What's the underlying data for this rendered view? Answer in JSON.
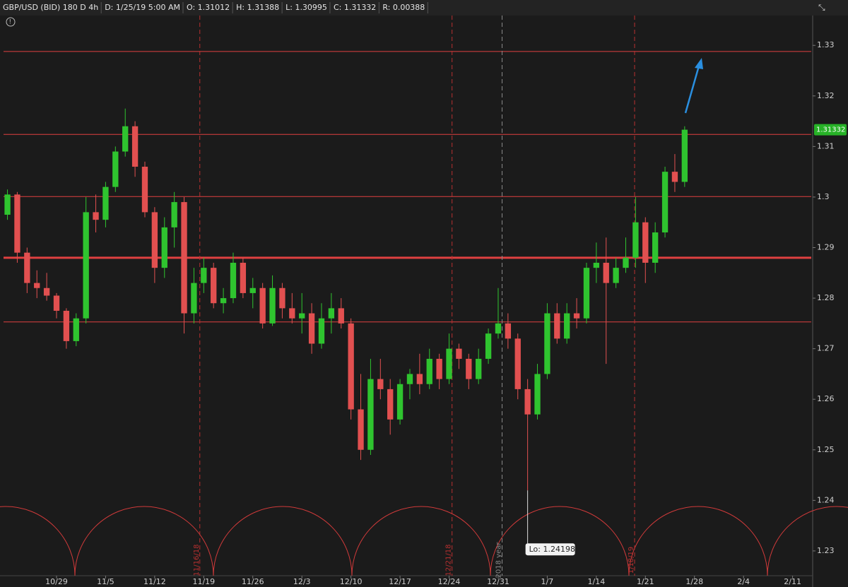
{
  "chart_data": {
    "type": "candlestick",
    "header": [
      "GBP/USD (BID) 180 D 4h",
      "D: 1/25/19 5:00 AM",
      "O: 1.31012",
      "H: 1.31388",
      "L: 1.30995",
      "C: 1.31332",
      "R: 0.00388"
    ],
    "open": [
      1.2965,
      1.3005,
      1.289,
      1.283,
      1.282,
      1.2805,
      1.2775,
      1.2715,
      1.276,
      1.297,
      1.2955,
      1.302,
      1.309,
      1.314,
      1.306,
      1.297,
      1.286,
      1.294,
      1.299,
      1.277,
      1.283,
      1.286,
      1.279,
      1.28,
      1.287,
      1.281,
      1.282,
      1.275,
      1.282,
      1.278,
      1.276,
      1.277,
      1.271,
      1.276,
      1.278,
      1.275,
      1.258,
      1.25,
      1.264,
      1.262,
      1.256,
      1.263,
      1.265,
      1.263,
      1.268,
      1.264,
      1.27,
      1.268,
      1.264,
      1.268,
      1.273,
      1.275,
      1.272,
      1.262,
      1.257,
      1.265,
      1.277,
      1.272,
      1.277,
      1.276,
      1.286,
      1.287,
      1.283,
      1.286,
      1.288,
      1.295,
      1.287,
      1.293,
      1.305,
      1.303
    ],
    "high": [
      1.3015,
      1.301,
      1.29,
      1.2855,
      1.285,
      1.281,
      1.278,
      1.277,
      1.3,
      1.3005,
      1.303,
      1.31,
      1.3175,
      1.315,
      1.307,
      1.298,
      1.296,
      1.301,
      1.3,
      1.286,
      1.288,
      1.287,
      1.282,
      1.289,
      1.288,
      1.284,
      1.283,
      1.2845,
      1.283,
      1.281,
      1.281,
      1.279,
      1.279,
      1.281,
      1.28,
      1.276,
      1.265,
      1.268,
      1.268,
      1.264,
      1.264,
      1.266,
      1.269,
      1.27,
      1.269,
      1.273,
      1.271,
      1.269,
      1.27,
      1.274,
      1.282,
      1.277,
      1.273,
      1.264,
      1.267,
      1.279,
      1.279,
      1.279,
      1.28,
      1.287,
      1.291,
      1.292,
      1.288,
      1.292,
      1.3,
      1.296,
      1.295,
      1.306,
      1.3085,
      1.314
    ],
    "low": [
      1.2955,
      1.287,
      1.281,
      1.28,
      1.2795,
      1.276,
      1.27,
      1.2705,
      1.275,
      1.293,
      1.294,
      1.301,
      1.308,
      1.304,
      1.296,
      1.283,
      1.284,
      1.29,
      1.273,
      1.275,
      1.281,
      1.278,
      1.277,
      1.279,
      1.28,
      1.278,
      1.274,
      1.2745,
      1.276,
      1.275,
      1.273,
      1.269,
      1.27,
      1.273,
      1.274,
      1.256,
      1.248,
      1.249,
      1.26,
      1.253,
      1.255,
      1.26,
      1.261,
      1.262,
      1.262,
      1.263,
      1.266,
      1.262,
      1.263,
      1.267,
      1.272,
      1.27,
      1.26,
      1.24198,
      1.256,
      1.264,
      1.271,
      1.271,
      1.274,
      1.275,
      1.283,
      1.267,
      1.282,
      1.285,
      1.286,
      1.283,
      1.285,
      1.292,
      1.301,
      1.302
    ],
    "close": [
      1.3005,
      1.289,
      1.283,
      1.282,
      1.2805,
      1.2775,
      1.2715,
      1.276,
      1.297,
      1.2955,
      1.302,
      1.309,
      1.314,
      1.306,
      1.297,
      1.286,
      1.294,
      1.299,
      1.277,
      1.283,
      1.286,
      1.279,
      1.28,
      1.287,
      1.281,
      1.282,
      1.275,
      1.282,
      1.278,
      1.276,
      1.277,
      1.271,
      1.276,
      1.278,
      1.275,
      1.258,
      1.25,
      1.264,
      1.262,
      1.256,
      1.263,
      1.265,
      1.263,
      1.268,
      1.264,
      1.27,
      1.268,
      1.264,
      1.268,
      1.273,
      1.275,
      1.272,
      1.262,
      1.257,
      1.265,
      1.277,
      1.272,
      1.277,
      1.276,
      1.286,
      1.287,
      1.283,
      1.286,
      1.288,
      1.295,
      1.287,
      1.293,
      1.305,
      1.303,
      1.31332
    ],
    "up_color": "#2fc42f",
    "down_color": "#e25050",
    "xlim": [
      -0.4,
      81.9
    ],
    "xticks": [
      {
        "value": 5,
        "label": "10/29"
      },
      {
        "value": 10,
        "label": "11/5"
      },
      {
        "value": 15,
        "label": "11/12"
      },
      {
        "value": 20,
        "label": "11/19"
      },
      {
        "value": 25,
        "label": "11/26"
      },
      {
        "value": 30,
        "label": "12/3"
      },
      {
        "value": 35,
        "label": "12/10"
      },
      {
        "value": 40,
        "label": "12/17"
      },
      {
        "value": 45,
        "label": "12/24"
      },
      {
        "value": 50,
        "label": "12/31"
      },
      {
        "value": 55,
        "label": "1/7"
      },
      {
        "value": 60,
        "label": "1/14"
      },
      {
        "value": 65,
        "label": "1/21"
      },
      {
        "value": 70,
        "label": "1/28"
      },
      {
        "value": 75,
        "label": "2/4"
      },
      {
        "value": 80,
        "label": "2/11"
      }
    ],
    "ylim": [
      1.2251,
      1.3359
    ],
    "yticks": [
      1.23,
      1.24,
      1.25,
      1.26,
      1.27,
      1.28,
      1.29,
      1.3,
      1.31,
      1.32,
      1.33
    ],
    "levels": [
      {
        "value": 1.3288
      },
      {
        "value": 1.3124
      },
      {
        "value": 1.3001
      },
      {
        "value": 1.288,
        "bold": true
      },
      {
        "value": 1.2753
      }
    ],
    "level_color": "#e04040",
    "markers": [
      {
        "x": 19.6,
        "label": "11/16/18",
        "color": "#b83030"
      },
      {
        "x": 45.3,
        "label": "12/21/18",
        "color": "#b83030"
      },
      {
        "x": 50.4,
        "label": "2018 year",
        "color": "#8a8a8a"
      },
      {
        "x": 63.9,
        "label": "1/18/19",
        "color": "#b83030"
      }
    ],
    "low_note": {
      "x": 53,
      "value": 1.24198,
      "text": "Lo: 1.24198"
    },
    "last": {
      "value": 1.31332,
      "label": "1.31332",
      "color": "#27b227"
    }
  }
}
